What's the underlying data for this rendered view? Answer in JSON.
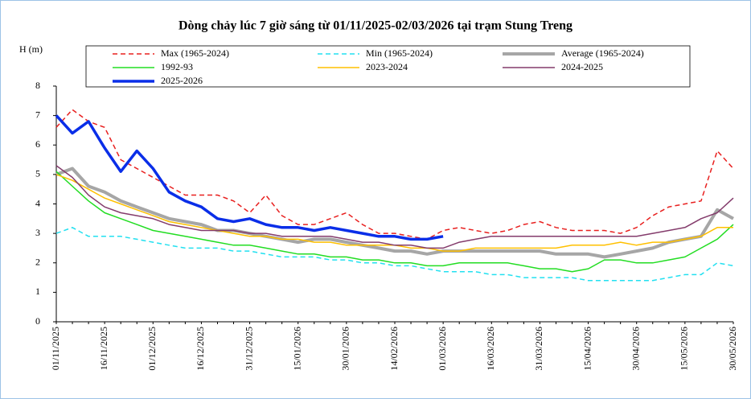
{
  "chart_data": {
    "type": "line",
    "title": "Dòng chảy lúc 7 giờ sáng từ 01/11/2025-02/03/2026 tại trạm Stung Treng",
    "y_label": "H (m)",
    "categories": [
      "01/11/2025",
      null,
      null,
      "16/11/2025",
      null,
      null,
      "01/12/2025",
      null,
      null,
      "16/12/2025",
      null,
      null,
      "31/12/2025",
      null,
      null,
      "15/01/2026",
      null,
      null,
      "30/01/2026",
      null,
      null,
      "14/02/2026",
      null,
      null,
      "01/03/2026",
      null,
      null,
      "16/03/2026",
      null,
      null,
      "31/03/2026",
      null,
      null,
      "15/04/2026",
      null,
      null,
      "30/04/2026",
      null,
      null,
      "15/05/2026",
      null,
      null,
      "30/05/2026"
    ],
    "ylim": [
      0,
      8
    ],
    "yticks": [
      0,
      1,
      2,
      3,
      4,
      5,
      6,
      7,
      8
    ],
    "series": [
      {
        "name": "Max (1965-2024)",
        "color": "#e8201f",
        "dashed": true,
        "line_width": 1.5,
        "values": [
          6.6,
          7.2,
          6.8,
          6.6,
          5.5,
          5.2,
          4.9,
          4.6,
          4.3,
          4.3,
          4.3,
          4.1,
          3.7,
          4.3,
          3.6,
          3.3,
          3.3,
          3.5,
          3.7,
          3.3,
          3.0,
          3.0,
          2.9,
          2.8,
          3.1,
          3.2,
          3.1,
          3.0,
          3.1,
          3.3,
          3.4,
          3.2,
          3.1,
          3.1,
          3.1,
          3.0,
          3.2,
          3.6,
          3.9,
          4.0,
          4.1,
          5.8,
          5.2
        ]
      },
      {
        "name": "Min (1965-2024)",
        "color": "#22e0f0",
        "dashed": true,
        "line_width": 1.5,
        "values": [
          3.0,
          3.2,
          2.9,
          2.9,
          2.9,
          2.8,
          2.7,
          2.6,
          2.5,
          2.5,
          2.5,
          2.4,
          2.4,
          2.3,
          2.2,
          2.2,
          2.2,
          2.1,
          2.1,
          2.0,
          2.0,
          1.9,
          1.9,
          1.8,
          1.7,
          1.7,
          1.7,
          1.6,
          1.6,
          1.5,
          1.5,
          1.5,
          1.5,
          1.4,
          1.4,
          1.4,
          1.4,
          1.4,
          1.5,
          1.6,
          1.6,
          2.0,
          1.9
        ]
      },
      {
        "name": "Average (1965-2024)",
        "color": "#a6a6a6",
        "dashed": false,
        "line_width": 4,
        "values": [
          5.0,
          5.2,
          4.6,
          4.4,
          4.1,
          3.9,
          3.7,
          3.5,
          3.4,
          3.3,
          3.1,
          3.1,
          3.0,
          2.9,
          2.8,
          2.7,
          2.8,
          2.8,
          2.7,
          2.6,
          2.5,
          2.4,
          2.4,
          2.3,
          2.4,
          2.4,
          2.4,
          2.4,
          2.4,
          2.4,
          2.4,
          2.3,
          2.3,
          2.3,
          2.2,
          2.3,
          2.4,
          2.5,
          2.7,
          2.8,
          2.9,
          3.8,
          3.5
        ]
      },
      {
        "name": "1992-93",
        "color": "#22dd22",
        "dashed": false,
        "line_width": 1.5,
        "values": [
          5.1,
          4.6,
          4.1,
          3.7,
          3.5,
          3.3,
          3.1,
          3.0,
          2.9,
          2.8,
          2.7,
          2.6,
          2.6,
          2.5,
          2.4,
          2.3,
          2.3,
          2.2,
          2.2,
          2.1,
          2.1,
          2.0,
          2.0,
          1.9,
          1.9,
          2.0,
          2.0,
          2.0,
          2.0,
          1.9,
          1.8,
          1.8,
          1.7,
          1.8,
          2.1,
          2.1,
          2.0,
          2.0,
          2.1,
          2.2,
          2.5,
          2.8,
          3.3
        ]
      },
      {
        "name": "2023-2024",
        "color": "#ffc000",
        "dashed": false,
        "line_width": 1.5,
        "values": [
          5.0,
          4.8,
          4.5,
          4.2,
          4.0,
          3.8,
          3.6,
          3.4,
          3.3,
          3.2,
          3.1,
          3.0,
          2.9,
          2.9,
          2.8,
          2.8,
          2.7,
          2.7,
          2.6,
          2.6,
          2.6,
          2.6,
          2.5,
          2.5,
          2.4,
          2.4,
          2.5,
          2.5,
          2.5,
          2.5,
          2.5,
          2.5,
          2.6,
          2.6,
          2.6,
          2.7,
          2.6,
          2.7,
          2.7,
          2.8,
          2.9,
          3.2,
          3.2
        ]
      },
      {
        "name": "2024-2025",
        "color": "#843c6c",
        "dashed": false,
        "line_width": 1.5,
        "values": [
          5.3,
          4.9,
          4.3,
          3.9,
          3.7,
          3.6,
          3.5,
          3.3,
          3.2,
          3.1,
          3.1,
          3.1,
          3.0,
          3.0,
          2.9,
          2.9,
          2.9,
          2.9,
          2.8,
          2.7,
          2.7,
          2.6,
          2.6,
          2.5,
          2.5,
          2.7,
          2.8,
          2.9,
          2.9,
          2.9,
          2.9,
          2.9,
          2.9,
          2.9,
          2.9,
          2.9,
          2.9,
          3.0,
          3.1,
          3.2,
          3.5,
          3.7,
          4.2
        ]
      },
      {
        "name": "2025-2026",
        "color": "#0a2ee8",
        "dashed": false,
        "line_width": 3.5,
        "values": [
          7.0,
          6.4,
          6.8,
          5.9,
          5.1,
          5.8,
          5.2,
          4.4,
          4.1,
          3.9,
          3.5,
          3.4,
          3.5,
          3.3,
          3.2,
          3.2,
          3.1,
          3.2,
          3.1,
          3.0,
          2.9,
          2.9,
          2.8,
          2.8,
          2.9,
          null,
          null,
          null,
          null,
          null,
          null,
          null,
          null,
          null,
          null,
          null,
          null,
          null,
          null,
          null,
          null,
          null,
          null
        ]
      }
    ]
  }
}
